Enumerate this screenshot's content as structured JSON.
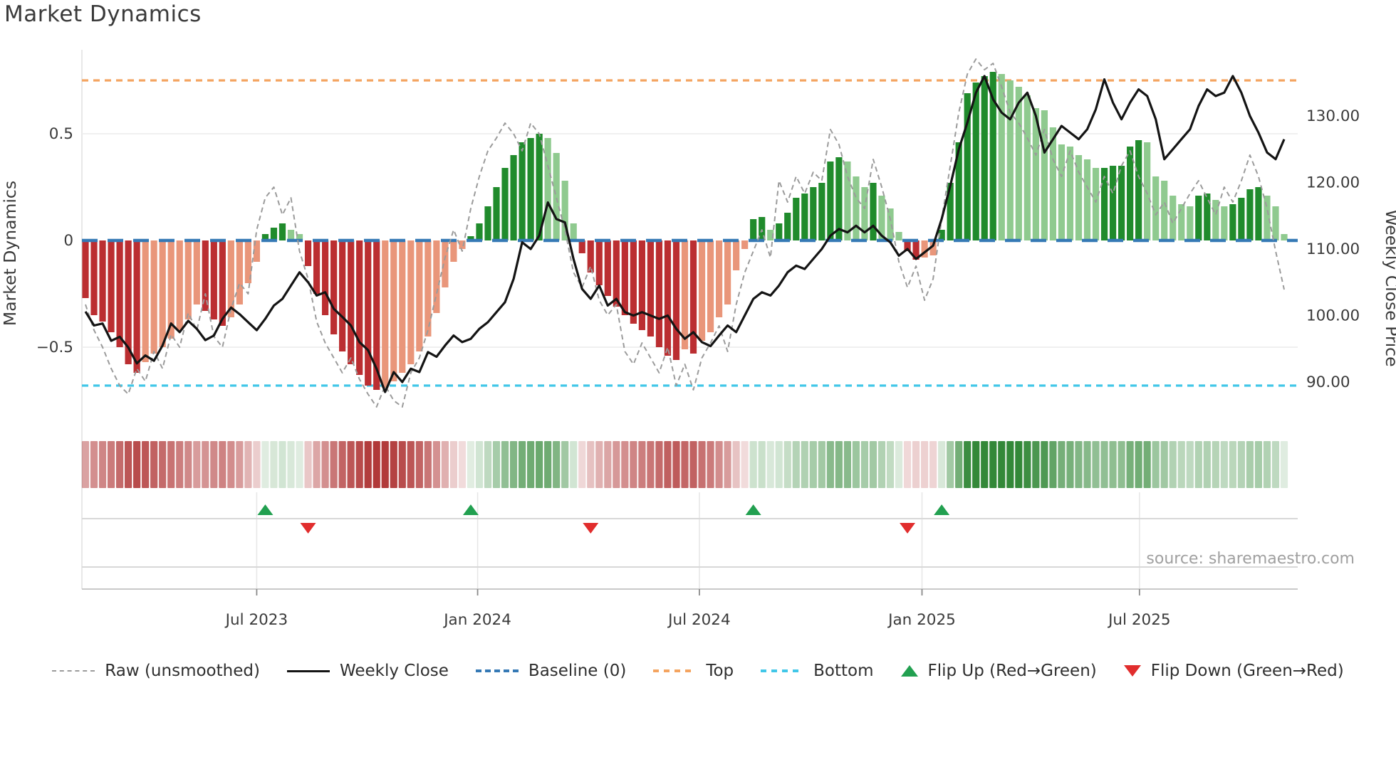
{
  "page": {
    "title": "Market Dynamics"
  },
  "source_note": "source: sharemaestro.com",
  "axes": {
    "left": {
      "label": "Market Dynamics",
      "ticks": [
        {
          "v": 0.5,
          "label": "0.5"
        },
        {
          "v": 0,
          "label": "0"
        },
        {
          "v": -0.5,
          "label": "−0.5"
        }
      ]
    },
    "right": {
      "label": "Weekly Close Price",
      "ticks": [
        {
          "v": 130,
          "label": "130.00"
        },
        {
          "v": 120,
          "label": "120.00"
        },
        {
          "v": 110,
          "label": "110.00"
        },
        {
          "v": 100,
          "label": "100.00"
        },
        {
          "v": 90,
          "label": "90.00"
        }
      ]
    },
    "x": {
      "ticks": [
        {
          "week": 20,
          "label": "Jul 2023"
        },
        {
          "week": 45.8,
          "label": "Jan 2024"
        },
        {
          "week": 71.7,
          "label": "Jul 2024"
        },
        {
          "week": 97.7,
          "label": "Jan 2025"
        },
        {
          "week": 123.1,
          "label": "Jul 2025"
        }
      ]
    }
  },
  "legend": {
    "items": [
      {
        "key": "raw",
        "label": "Raw (unsmoothed)"
      },
      {
        "key": "close",
        "label": "Weekly Close"
      },
      {
        "key": "baseline",
        "label": "Baseline (0)"
      },
      {
        "key": "top",
        "label": "Top"
      },
      {
        "key": "bottom",
        "label": "Bottom"
      },
      {
        "key": "flip-up",
        "label": "Flip Up (Red→Green)"
      },
      {
        "key": "flip-down",
        "label": "Flip Down (Green→Red)"
      }
    ]
  },
  "colors": {
    "bar_pos_strong": "#208b2c",
    "bar_pos_weak": "#8fca8f",
    "bar_neg_strong": "#bb2e31",
    "bar_neg_weak": "#e9967a",
    "baseline": "#3579b5",
    "top": "#f4a460",
    "bottom": "#41c7e8",
    "raw": "#9b9b9b",
    "close": "#141414",
    "flip_up": "#22a050",
    "flip_down": "#e12d2d",
    "grid": "#ececec",
    "axis_line": "#c9c9c9",
    "text": "#3a3a3a",
    "source": "#a0a0a0"
  },
  "chart_data": {
    "type": "combo",
    "title": "Market Dynamics",
    "frequency": "weekly",
    "start_date": "2023-02-13",
    "n_weeks": 141,
    "xlabel_ticks": [
      "Jul 2023",
      "Jan 2024",
      "Jul 2024",
      "Jan 2025",
      "Jul 2025"
    ],
    "ylim_left": [
      -0.89,
      0.89
    ],
    "ylim_right": [
      82.5,
      140.0
    ],
    "baseline": 0,
    "top_line": 0.75,
    "bottom_line": -0.68,
    "flip_up_weeks": [
      21,
      45,
      78,
      100
    ],
    "flip_down_weeks": [
      26,
      59,
      96
    ],
    "series": [
      {
        "name": "Market Dynamics (smoothed bars)",
        "type": "bar",
        "axis": "left",
        "values": [
          -0.27,
          -0.35,
          -0.38,
          -0.43,
          -0.5,
          -0.58,
          -0.62,
          -0.57,
          -0.53,
          -0.5,
          -0.46,
          -0.42,
          -0.37,
          -0.3,
          -0.33,
          -0.37,
          -0.4,
          -0.36,
          -0.3,
          -0.2,
          -0.1,
          0.03,
          0.06,
          0.08,
          0.05,
          0.03,
          -0.12,
          -0.25,
          -0.35,
          -0.44,
          -0.52,
          -0.58,
          -0.63,
          -0.68,
          -0.7,
          -0.69,
          -0.66,
          -0.62,
          -0.58,
          -0.52,
          -0.45,
          -0.34,
          -0.22,
          -0.1,
          -0.04,
          0.02,
          0.08,
          0.16,
          0.25,
          0.34,
          0.4,
          0.46,
          0.48,
          0.5,
          0.48,
          0.41,
          0.28,
          0.08,
          -0.06,
          -0.15,
          -0.21,
          -0.26,
          -0.31,
          -0.35,
          -0.39,
          -0.42,
          -0.45,
          -0.5,
          -0.54,
          -0.56,
          -0.51,
          -0.53,
          -0.47,
          -0.43,
          -0.36,
          -0.3,
          -0.14,
          -0.04,
          0.1,
          0.11,
          0.05,
          0.08,
          0.13,
          0.2,
          0.22,
          0.25,
          0.27,
          0.37,
          0.39,
          0.37,
          0.3,
          0.25,
          0.27,
          0.21,
          0.15,
          0.04,
          -0.05,
          -0.09,
          -0.08,
          -0.07,
          0.05,
          0.27,
          0.46,
          0.69,
          0.74,
          0.77,
          0.79,
          0.78,
          0.75,
          0.72,
          0.68,
          0.62,
          0.61,
          0.53,
          0.45,
          0.44,
          0.4,
          0.38,
          0.34,
          0.34,
          0.35,
          0.35,
          0.44,
          0.47,
          0.46,
          0.3,
          0.28,
          0.21,
          0.17,
          0.16,
          0.21,
          0.22,
          0.19,
          0.16,
          0.17,
          0.2,
          0.24,
          0.25,
          0.21,
          0.16,
          0.03
        ]
      },
      {
        "name": "Raw (unsmoothed)",
        "type": "line",
        "axis": "left",
        "values": [
          -0.3,
          -0.42,
          -0.5,
          -0.6,
          -0.68,
          -0.72,
          -0.6,
          -0.66,
          -0.52,
          -0.6,
          -0.44,
          -0.5,
          -0.34,
          -0.42,
          -0.25,
          -0.45,
          -0.5,
          -0.32,
          -0.2,
          -0.25,
          0.05,
          0.2,
          0.25,
          0.12,
          0.2,
          -0.05,
          -0.18,
          -0.38,
          -0.48,
          -0.55,
          -0.62,
          -0.55,
          -0.65,
          -0.72,
          -0.78,
          -0.68,
          -0.75,
          -0.78,
          -0.62,
          -0.55,
          -0.42,
          -0.25,
          -0.08,
          0.05,
          -0.05,
          0.15,
          0.3,
          0.42,
          0.48,
          0.55,
          0.5,
          0.42,
          0.55,
          0.5,
          0.35,
          0.2,
          0.05,
          -0.15,
          -0.22,
          -0.12,
          -0.28,
          -0.35,
          -0.3,
          -0.52,
          -0.58,
          -0.48,
          -0.55,
          -0.62,
          -0.5,
          -0.68,
          -0.58,
          -0.7,
          -0.55,
          -0.48,
          -0.4,
          -0.52,
          -0.3,
          -0.15,
          -0.05,
          0.05,
          -0.08,
          0.28,
          0.18,
          0.3,
          0.22,
          0.32,
          0.28,
          0.52,
          0.45,
          0.3,
          0.2,
          0.15,
          0.38,
          0.25,
          0.1,
          -0.1,
          -0.22,
          -0.12,
          -0.28,
          -0.18,
          0.1,
          0.35,
          0.6,
          0.78,
          0.85,
          0.8,
          0.83,
          0.72,
          0.6,
          0.55,
          0.48,
          0.4,
          0.52,
          0.38,
          0.3,
          0.42,
          0.32,
          0.25,
          0.18,
          0.3,
          0.22,
          0.35,
          0.42,
          0.3,
          0.22,
          0.12,
          0.18,
          0.08,
          0.15,
          0.22,
          0.28,
          0.2,
          0.12,
          0.25,
          0.18,
          0.28,
          0.4,
          0.3,
          0.15,
          -0.05,
          -0.23
        ]
      },
      {
        "name": "Weekly Close",
        "type": "line",
        "axis": "right",
        "values": [
          100.6,
          98.5,
          98.8,
          96.2,
          96.8,
          95.2,
          92.8,
          94,
          93.2,
          95.5,
          98.8,
          97.5,
          99.2,
          98,
          96.3,
          97,
          99.5,
          101.2,
          100.2,
          99,
          97.8,
          99.5,
          101.5,
          102.5,
          104.5,
          106.5,
          105,
          103,
          103.5,
          101,
          99.8,
          98.5,
          96,
          94.8,
          92,
          88.5,
          91.5,
          90,
          92,
          91.5,
          94.5,
          93.8,
          95.5,
          97,
          96,
          96.5,
          98,
          99,
          100.5,
          102,
          105.5,
          111,
          110,
          112,
          117,
          114.5,
          114,
          108.5,
          104,
          102.5,
          104.5,
          101.5,
          102.5,
          100.5,
          100,
          100.5,
          100,
          99.5,
          100,
          98,
          96.5,
          97.5,
          96,
          95.4,
          97,
          98.5,
          97.5,
          100,
          102.5,
          103.5,
          103,
          104.5,
          106.5,
          107.5,
          107,
          108.5,
          110,
          112,
          113,
          112.5,
          113.5,
          112.5,
          113.5,
          112,
          111,
          109,
          110,
          108.5,
          109.5,
          110.5,
          114.5,
          119.5,
          125,
          129,
          133.5,
          136,
          132.5,
          130.5,
          129.5,
          132,
          133.5,
          130,
          124.5,
          126.5,
          128.5,
          127.5,
          126.5,
          128,
          131,
          135.5,
          132,
          129.5,
          132,
          134,
          133,
          129.5,
          123.5,
          125,
          126.5,
          128,
          131.5,
          134,
          133,
          133.5,
          136,
          133.5,
          130,
          127.5,
          124.5,
          123.5,
          126.5
        ]
      }
    ],
    "heatmap_strip": "same sign/intensity as bar values, red=negative green=positive"
  }
}
